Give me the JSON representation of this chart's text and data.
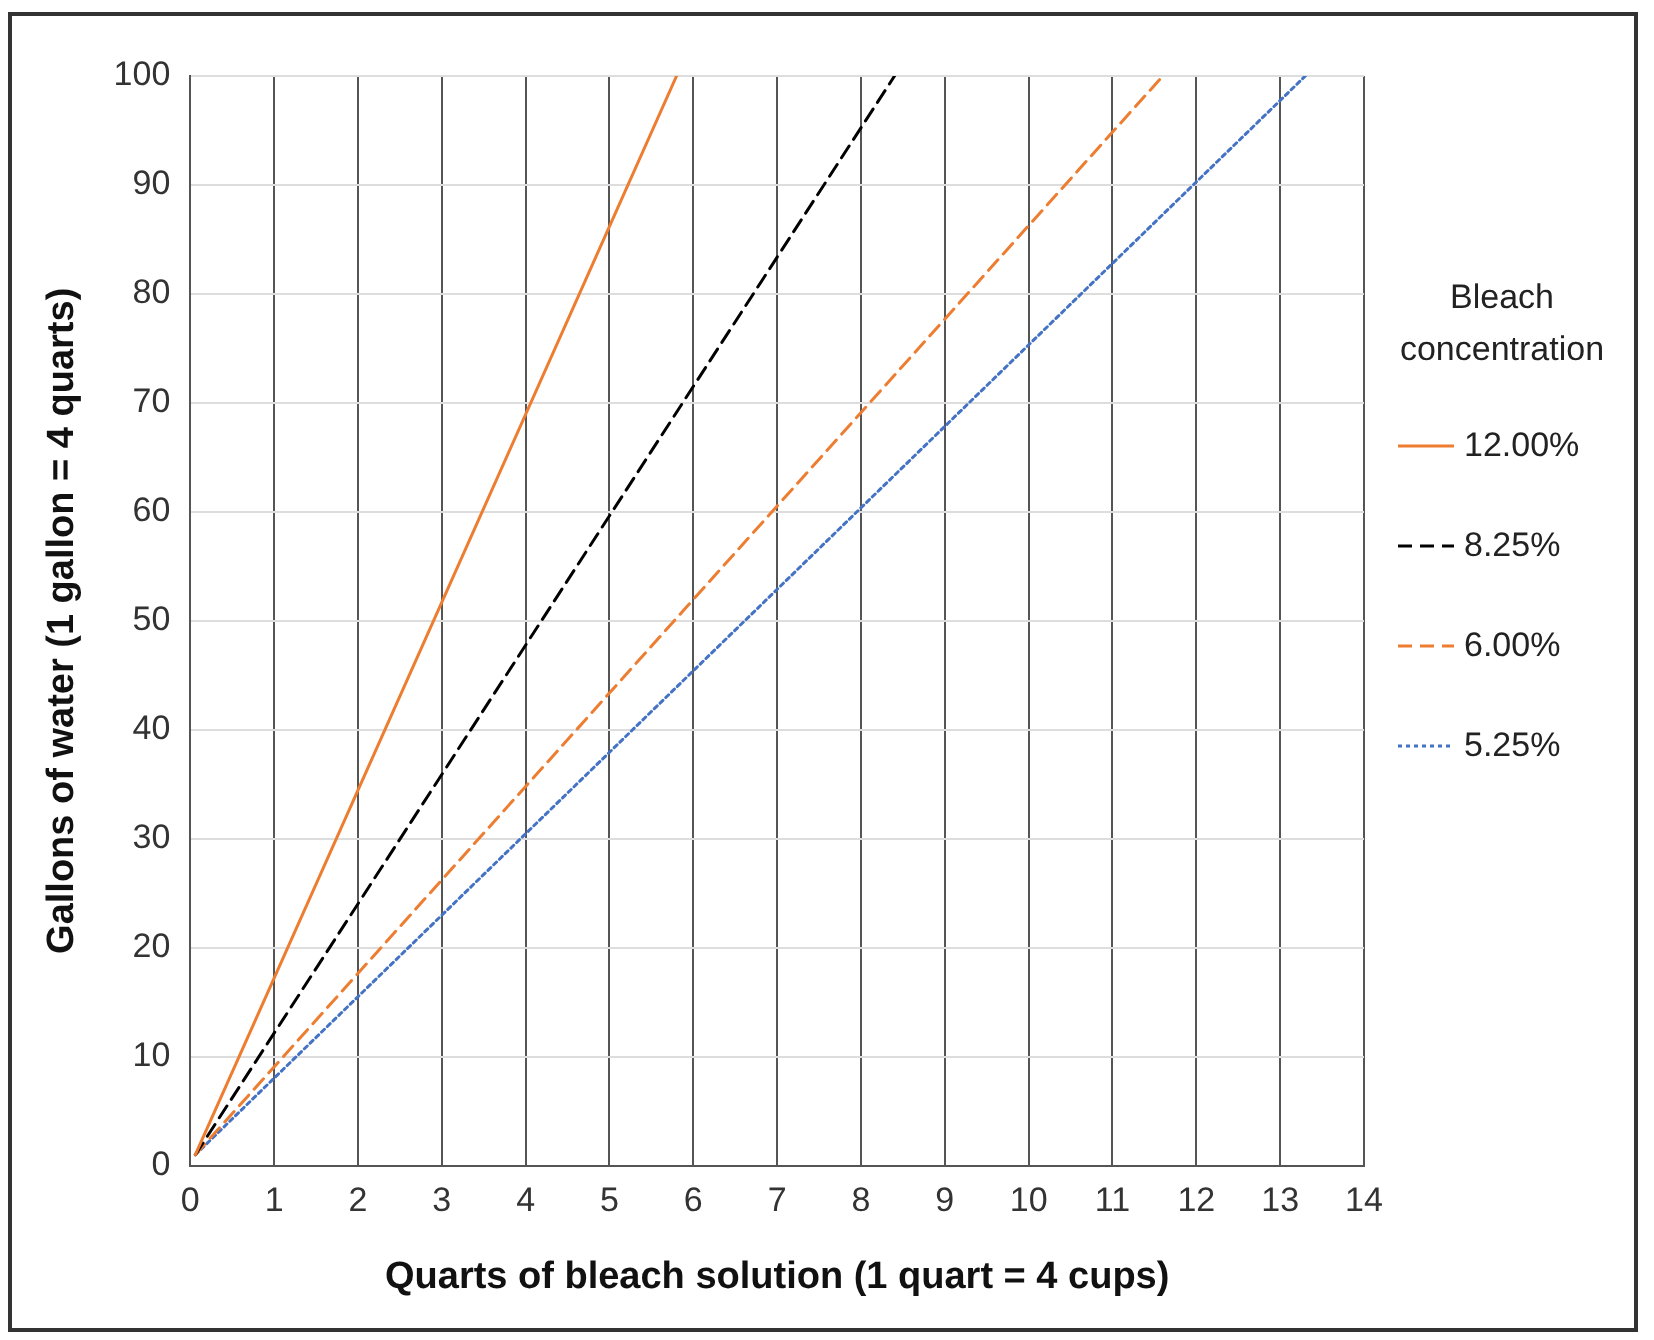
{
  "chart_data": {
    "type": "line",
    "xlabel": "Quarts of bleach solution (1 quart = 4 cups)",
    "ylabel": "Gallons of water (1 gallon = 4 quarts)",
    "legend_title": "Bleach concentration",
    "legend": "right",
    "grid": true,
    "marker": "none",
    "xlim": [
      0,
      14
    ],
    "xticks": [
      0,
      1,
      2,
      3,
      4,
      5,
      6,
      7,
      8,
      9,
      10,
      11,
      12,
      13,
      14
    ],
    "ylim": [
      0,
      100
    ],
    "yticks": [
      0,
      10,
      20,
      30,
      40,
      50,
      60,
      70,
      80,
      90,
      100
    ],
    "series": [
      {
        "name": "12.00%",
        "color": "#ed7d31",
        "line_style": "solid",
        "x": [
          0.06,
          5.8
        ],
        "values": [
          1,
          100
        ]
      },
      {
        "name": "8.25%",
        "color": "#000000",
        "line_style": "dashed",
        "x": [
          0.06,
          8.4
        ],
        "values": [
          1,
          100
        ]
      },
      {
        "name": "6.00%",
        "color": "#ed7d31",
        "line_style": "dashed",
        "x": [
          0.06,
          11.6
        ],
        "values": [
          1,
          100
        ]
      },
      {
        "name": "5.25%",
        "color": "#4472c4",
        "line_style": "dotted",
        "x": [
          0.06,
          13.3
        ],
        "values": [
          1,
          100
        ]
      }
    ]
  }
}
